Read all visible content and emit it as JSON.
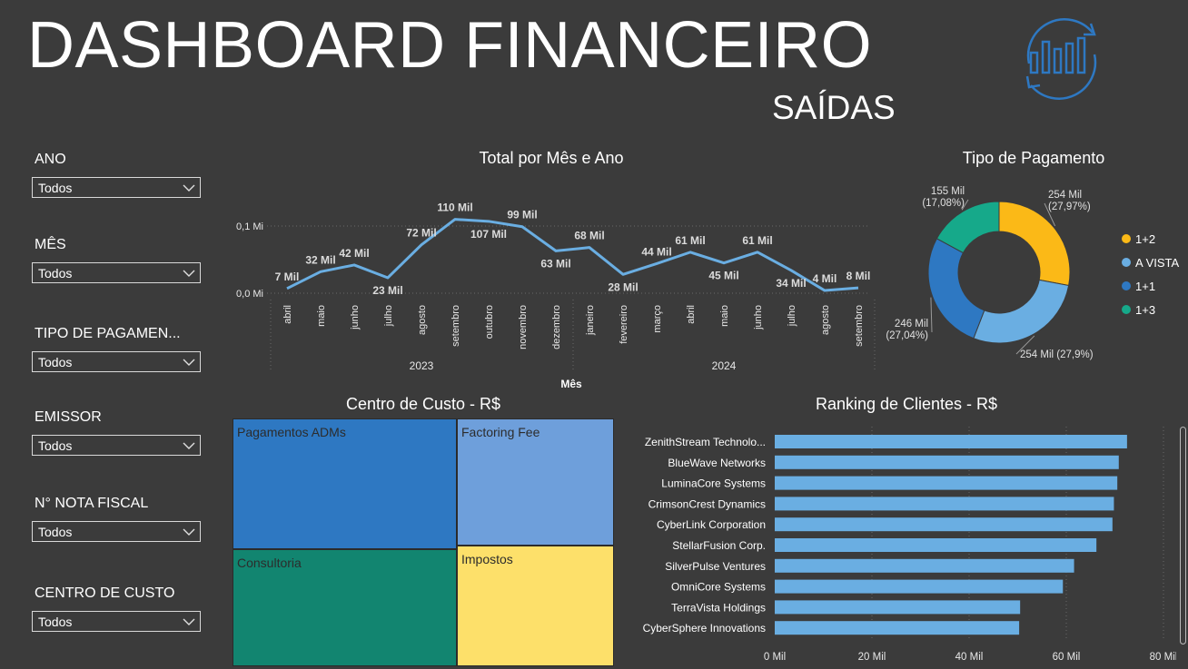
{
  "header": {
    "title": "DASHBOARD FINANCEIRO",
    "subtitle": "SAÍDAS"
  },
  "filters": [
    {
      "label": "ANO",
      "value": "Todos"
    },
    {
      "label": "MÊS",
      "value": "Todos"
    },
    {
      "label": "TIPO DE PAGAMEN...",
      "value": "Todos"
    },
    {
      "label": "EMISSOR",
      "value": "Todos"
    },
    {
      "label": "N° NOTA FISCAL",
      "value": "Todos"
    },
    {
      "label": "CENTRO DE CUSTO",
      "value": "Todos"
    }
  ],
  "colors": {
    "background": "#3b3b3b",
    "line": "#6aaee2",
    "bar": "#6aaee2",
    "pie_1_2": "#fbb917",
    "pie_a_vista": "#6aaee2",
    "pie_1_1": "#2e78c2",
    "pie_1_3": "#16a98a"
  },
  "chart_data": [
    {
      "id": "line",
      "type": "line",
      "title": "Total por Mês e Ano",
      "xlabel": "Mês",
      "y_ticks": [
        "0,1 Mi",
        "0,0 Mi"
      ],
      "ylim": [
        0,
        130
      ],
      "categories": [
        "abril",
        "maio",
        "junho",
        "julho",
        "agosto",
        "setembro",
        "outubro",
        "novembro",
        "dezembro",
        "janeiro",
        "fevereiro",
        "março",
        "abril",
        "maio",
        "junho",
        "julho",
        "agosto",
        "setembro"
      ],
      "values": [
        7,
        32,
        42,
        23,
        72,
        110,
        107,
        99,
        63,
        68,
        28,
        44,
        61,
        45,
        61,
        34,
        4,
        8
      ],
      "labels": [
        "7 Mil",
        "32 Mil",
        "42 Mil",
        "23 Mil",
        "72 Mil",
        "110 Mil",
        "107 Mil",
        "99 Mil",
        "63 Mil",
        "68 Mil",
        "28 Mil",
        "44 Mil",
        "61 Mil",
        "45 Mil",
        "61 Mil",
        "34 Mil",
        "4 Mil",
        "8 Mil"
      ],
      "years": [
        {
          "label": "2023",
          "first_index": 0,
          "last_index": 8
        },
        {
          "label": "2024",
          "first_index": 9,
          "last_index": 17
        }
      ]
    },
    {
      "id": "donut",
      "type": "pie",
      "title": "Tipo de Pagamento",
      "slices": [
        {
          "name": "1+2",
          "value": 27.97,
          "label": "254 Mil\n(27,97%)"
        },
        {
          "name": "A VISTA",
          "value": 27.9,
          "label": "254 Mil (27,9%)"
        },
        {
          "name": "1+1",
          "value": 27.04,
          "label": "246 Mil\n(27,04%)"
        },
        {
          "name": "1+3",
          "value": 17.08,
          "label": "155 Mil\n(17,08%)"
        }
      ],
      "legend": "right"
    },
    {
      "id": "treemap",
      "type": "heatmap",
      "title": "Centro de Custo - R$",
      "cells": [
        {
          "name": "Pagamentos ADMs",
          "color": "#2e78c2"
        },
        {
          "name": "Factoring Fee",
          "color": "#6e9fdb"
        },
        {
          "name": "Consultoria",
          "color": "#128570"
        },
        {
          "name": "Impostos",
          "color": "#fde06a"
        }
      ]
    },
    {
      "id": "ranking",
      "type": "bar",
      "title": "Ranking de Clientes - R$",
      "categories": [
        "ZenithStream Technolo...",
        "BlueWave Networks",
        "LuminaCore Systems",
        "CrimsonCrest Dynamics",
        "CyberLink Corporation",
        "StellarFusion Corp.",
        "SilverPulse Ventures",
        "OmniCore Systems",
        "TerraVista Holdings",
        "CyberSphere Innovations"
      ],
      "values": [
        72.5,
        70.8,
        70.5,
        69.8,
        69.5,
        66.2,
        61.6,
        59.3,
        50.5,
        50.3
      ],
      "x_ticks": [
        "0 Mil",
        "20 Mil",
        "40 Mil",
        "60 Mil",
        "80 Mil"
      ],
      "xlim": [
        0,
        80
      ]
    }
  ]
}
